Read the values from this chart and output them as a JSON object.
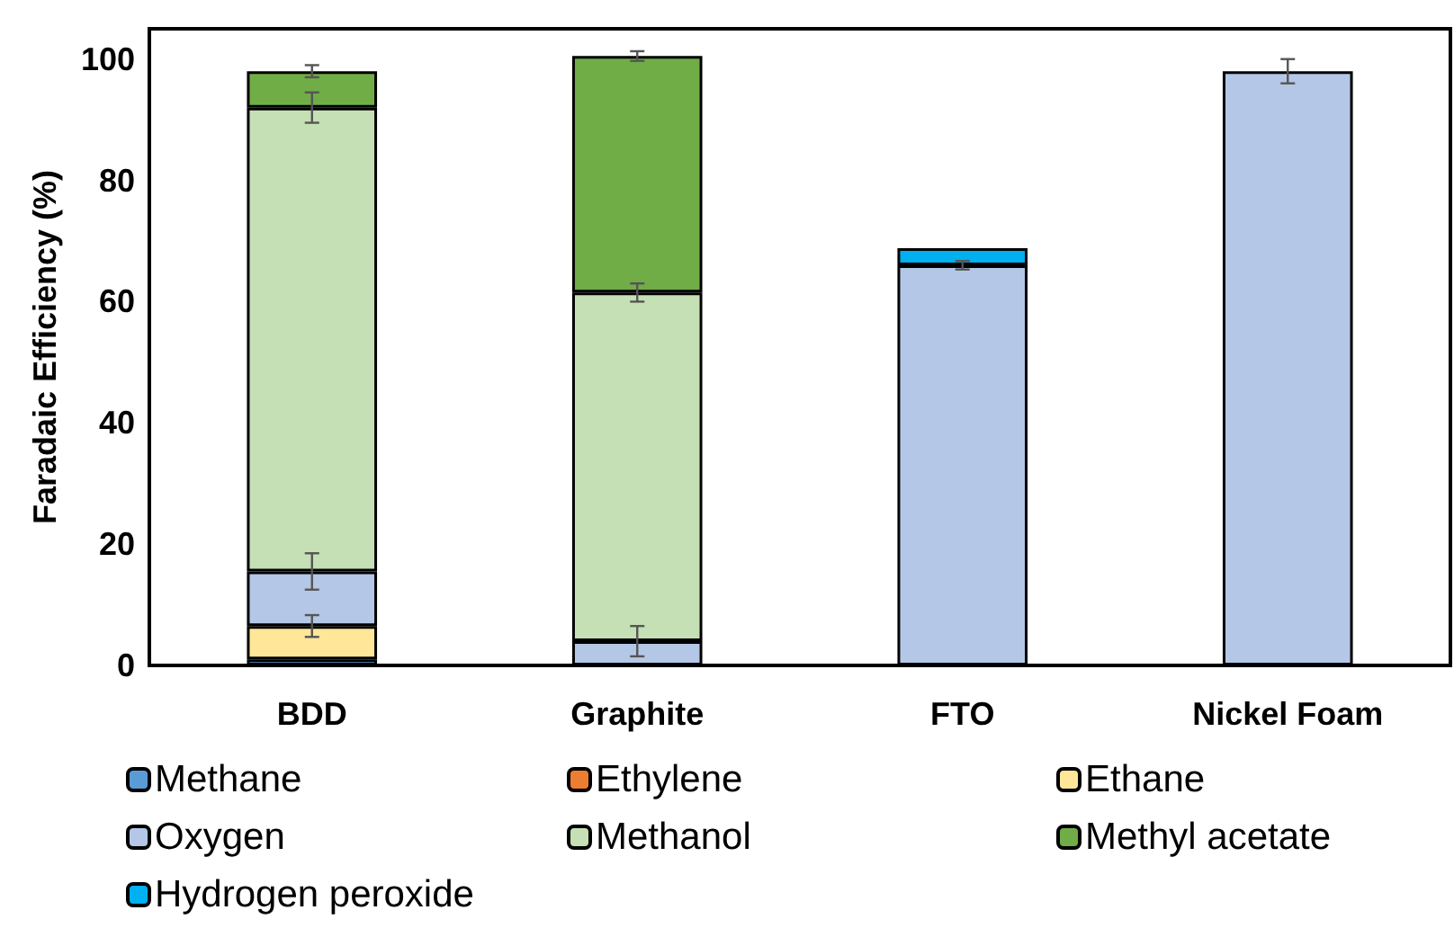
{
  "chart_data": {
    "type": "bar",
    "stacked": true,
    "ylabel": "Faradaic Efficiency (%)",
    "categories": [
      "BDD",
      "Graphite",
      "FTO",
      "Nickel Foam"
    ],
    "series": [
      {
        "name": "Methane",
        "color": "#5b9bd5",
        "values": [
          1,
          null,
          null,
          null
        ]
      },
      {
        "name": "Ethylene",
        "color": "#ed7d31",
        "values": [
          null,
          null,
          null,
          null
        ]
      },
      {
        "name": "Ethane",
        "color": "#ffe699",
        "values": [
          5.5,
          null,
          null,
          null
        ],
        "errors": [
          1.8,
          null,
          null,
          null
        ]
      },
      {
        "name": "Oxygen",
        "color": "#b4c7e7",
        "values": [
          9,
          4,
          66,
          98
        ],
        "errors": [
          3,
          2.5,
          0.7,
          2
        ]
      },
      {
        "name": "Methanol",
        "color": "#c5e0b4",
        "values": [
          76.5,
          57.5,
          null,
          null
        ],
        "errors": [
          2.5,
          1.5,
          null,
          null
        ]
      },
      {
        "name": "Methyl acetate",
        "color": "#70ad47",
        "values": [
          6,
          39,
          null,
          null
        ],
        "errors": [
          1,
          0.8,
          null,
          null
        ]
      },
      {
        "name": "Hydrogen peroxide",
        "color": "#00b0f0",
        "values": [
          null,
          null,
          2.8,
          null
        ]
      }
    ],
    "ylim": [
      0,
      105
    ],
    "yticks": [
      0,
      20,
      40,
      60,
      80,
      100
    ],
    "grid": false,
    "legend": "bottom"
  }
}
